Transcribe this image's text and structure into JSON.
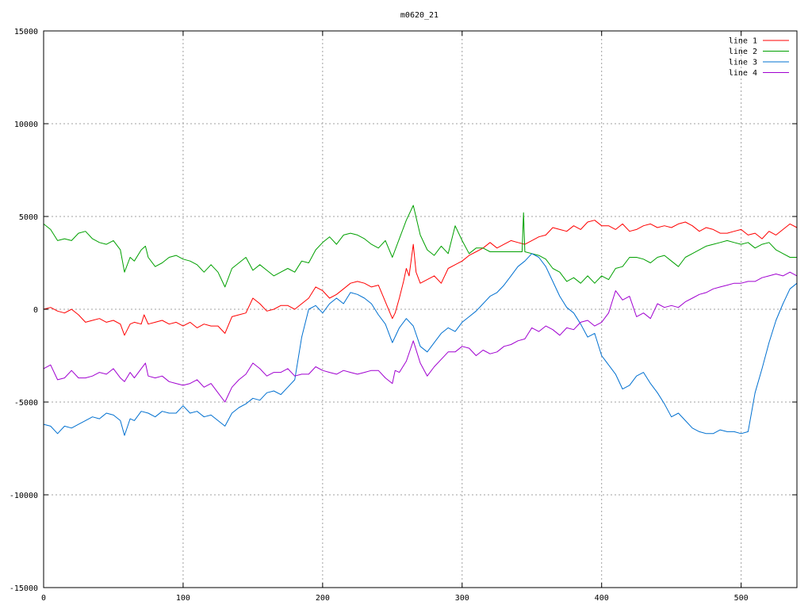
{
  "chart_data": {
    "type": "line",
    "title": "m0620_21",
    "xlabel": "",
    "ylabel": "",
    "xlim": [
      0,
      540
    ],
    "ylim": [
      -15000,
      15000
    ],
    "xticks": [
      "0",
      "100",
      "200",
      "300",
      "400",
      "500"
    ],
    "xtick_values": [
      0,
      100,
      200,
      300,
      400,
      500
    ],
    "yticks": [
      "15000",
      "10000",
      "5000",
      "0",
      "-5000",
      "-10000",
      "-15000"
    ],
    "ytick_values": [
      15000,
      10000,
      5000,
      0,
      -5000,
      -10000,
      -15000
    ],
    "grid": true,
    "legend_position": "top-right",
    "series": [
      {
        "name": "line 1",
        "color": "#ff0000",
        "x": [
          0,
          5,
          10,
          15,
          20,
          25,
          30,
          35,
          40,
          45,
          50,
          55,
          58,
          62,
          65,
          70,
          72,
          75,
          80,
          85,
          90,
          95,
          100,
          105,
          110,
          115,
          120,
          125,
          130,
          135,
          140,
          145,
          150,
          155,
          160,
          165,
          170,
          175,
          180,
          185,
          190,
          195,
          200,
          205,
          210,
          215,
          220,
          225,
          230,
          235,
          240,
          245,
          250,
          252,
          255,
          258,
          260,
          262,
          265,
          267,
          270,
          275,
          280,
          285,
          290,
          295,
          300,
          305,
          310,
          315,
          320,
          325,
          330,
          335,
          340,
          345,
          350,
          355,
          360,
          365,
          370,
          375,
          380,
          385,
          390,
          395,
          400,
          405,
          410,
          415,
          420,
          425,
          430,
          435,
          440,
          445,
          450,
          455,
          460,
          465,
          470,
          475,
          480,
          485,
          490,
          495,
          500,
          505,
          510,
          515,
          520,
          525,
          530,
          535,
          540
        ],
        "y": [
          0,
          100,
          -100,
          -200,
          0,
          -300,
          -700,
          -600,
          -500,
          -700,
          -600,
          -800,
          -1400,
          -800,
          -700,
          -800,
          -300,
          -800,
          -700,
          -600,
          -800,
          -700,
          -900,
          -700,
          -1000,
          -800,
          -900,
          -900,
          -1300,
          -400,
          -300,
          -200,
          600,
          300,
          -100,
          0,
          200,
          200,
          0,
          300,
          600,
          1200,
          1000,
          600,
          800,
          1100,
          1400,
          1500,
          1400,
          1200,
          1300,
          400,
          -500,
          -200,
          600,
          1500,
          2200,
          1800,
          3500,
          2000,
          1400,
          1600,
          1800,
          1400,
          2200,
          2400,
          2600,
          2900,
          3100,
          3300,
          3600,
          3300,
          3500,
          3700,
          3600,
          3500,
          3700,
          3900,
          4000,
          4400,
          4300,
          4200,
          4500,
          4300,
          4700,
          4800,
          4500,
          4500,
          4300,
          4600,
          4200,
          4300,
          4500,
          4600,
          4400,
          4500,
          4400,
          4600,
          4700,
          4500,
          4200,
          4400,
          4300,
          4100,
          4100,
          4200,
          4300,
          4000,
          4100,
          3800,
          4200,
          4000,
          4300,
          4600,
          4400
        ]
      },
      {
        "name": "line 2",
        "color": "#00a000",
        "x": [
          0,
          5,
          10,
          15,
          20,
          25,
          30,
          35,
          40,
          45,
          50,
          55,
          58,
          62,
          65,
          70,
          73,
          75,
          80,
          85,
          90,
          95,
          100,
          105,
          110,
          115,
          120,
          125,
          130,
          135,
          140,
          145,
          150,
          155,
          160,
          165,
          170,
          175,
          180,
          185,
          190,
          195,
          200,
          205,
          210,
          215,
          220,
          225,
          230,
          235,
          240,
          245,
          250,
          255,
          260,
          265,
          270,
          275,
          280,
          285,
          290,
          295,
          300,
          305,
          310,
          315,
          320,
          325,
          330,
          335,
          340,
          343,
          344,
          345,
          350,
          355,
          360,
          365,
          370,
          375,
          380,
          385,
          390,
          395,
          400,
          405,
          410,
          415,
          420,
          425,
          430,
          435,
          440,
          445,
          450,
          455,
          460,
          465,
          470,
          475,
          480,
          485,
          490,
          495,
          500,
          505,
          510,
          515,
          520,
          525,
          530,
          535,
          540
        ],
        "y": [
          4600,
          4300,
          3700,
          3800,
          3700,
          4100,
          4200,
          3800,
          3600,
          3500,
          3700,
          3200,
          2000,
          2800,
          2600,
          3200,
          3400,
          2800,
          2300,
          2500,
          2800,
          2900,
          2700,
          2600,
          2400,
          2000,
          2400,
          2000,
          1200,
          2200,
          2500,
          2800,
          2100,
          2400,
          2100,
          1800,
          2000,
          2200,
          2000,
          2600,
          2500,
          3200,
          3600,
          3900,
          3500,
          4000,
          4100,
          4000,
          3800,
          3500,
          3300,
          3700,
          2800,
          3800,
          4800,
          5600,
          4000,
          3200,
          2900,
          3400,
          3000,
          4500,
          3700,
          3000,
          3300,
          3300,
          3100,
          3100,
          3100,
          3100,
          3100,
          3100,
          5200,
          3100,
          3000,
          2900,
          2700,
          2200,
          2000,
          1500,
          1700,
          1400,
          1800,
          1400,
          1800,
          1600,
          2200,
          2300,
          2800,
          2800,
          2700,
          2500,
          2800,
          2900,
          2600,
          2300,
          2800,
          3000,
          3200,
          3400,
          3500,
          3600,
          3700,
          3600,
          3500,
          3600,
          3300,
          3500,
          3600,
          3200,
          3000,
          2800,
          2800
        ]
      },
      {
        "name": "line 3",
        "color": "#0070d0",
        "x": [
          0,
          5,
          10,
          15,
          20,
          25,
          30,
          35,
          40,
          45,
          50,
          55,
          58,
          62,
          65,
          70,
          75,
          80,
          85,
          90,
          95,
          100,
          105,
          110,
          115,
          120,
          125,
          130,
          135,
          140,
          145,
          150,
          155,
          160,
          165,
          170,
          175,
          180,
          185,
          190,
          195,
          200,
          205,
          210,
          215,
          220,
          225,
          230,
          235,
          240,
          245,
          250,
          255,
          260,
          265,
          270,
          275,
          280,
          285,
          290,
          295,
          300,
          305,
          310,
          315,
          320,
          325,
          330,
          335,
          340,
          345,
          350,
          355,
          360,
          365,
          370,
          375,
          380,
          385,
          390,
          395,
          400,
          405,
          410,
          415,
          420,
          425,
          430,
          435,
          440,
          445,
          450,
          455,
          460,
          465,
          470,
          475,
          480,
          485,
          490,
          495,
          500,
          505,
          510,
          515,
          520,
          525,
          530,
          535,
          540
        ],
        "y": [
          -6200,
          -6300,
          -6700,
          -6300,
          -6400,
          -6200,
          -6000,
          -5800,
          -5900,
          -5600,
          -5700,
          -6000,
          -6800,
          -5900,
          -6000,
          -5500,
          -5600,
          -5800,
          -5500,
          -5600,
          -5600,
          -5200,
          -5600,
          -5500,
          -5800,
          -5700,
          -6000,
          -6300,
          -5600,
          -5300,
          -5100,
          -4800,
          -4900,
          -4500,
          -4400,
          -4600,
          -4200,
          -3800,
          -1500,
          0,
          200,
          -200,
          300,
          600,
          300,
          900,
          800,
          600,
          300,
          -300,
          -800,
          -1800,
          -1000,
          -500,
          -900,
          -2000,
          -2300,
          -1800,
          -1300,
          -1000,
          -1200,
          -700,
          -400,
          -100,
          300,
          700,
          900,
          1300,
          1800,
          2300,
          2600,
          3000,
          2800,
          2300,
          1500,
          700,
          100,
          -200,
          -800,
          -1500,
          -1300,
          -2500,
          -3000,
          -3500,
          -4300,
          -4100,
          -3600,
          -3400,
          -4000,
          -4500,
          -5100,
          -5800,
          -5600,
          -6000,
          -6400,
          -6600,
          -6700,
          -6700,
          -6500,
          -6600,
          -6600,
          -6700,
          -6600,
          -4500,
          -3200,
          -1800,
          -600,
          300,
          1100,
          1400
        ]
      },
      {
        "name": "line 4",
        "color": "#a000d0",
        "x": [
          0,
          5,
          10,
          15,
          20,
          25,
          30,
          35,
          40,
          45,
          50,
          55,
          58,
          62,
          65,
          70,
          73,
          75,
          80,
          85,
          90,
          95,
          100,
          105,
          110,
          115,
          120,
          125,
          130,
          135,
          140,
          145,
          150,
          155,
          160,
          165,
          170,
          175,
          180,
          185,
          190,
          195,
          200,
          205,
          210,
          215,
          220,
          225,
          230,
          235,
          240,
          245,
          250,
          252,
          255,
          260,
          265,
          270,
          275,
          280,
          285,
          290,
          295,
          300,
          305,
          310,
          315,
          320,
          325,
          330,
          335,
          340,
          345,
          350,
          355,
          360,
          365,
          370,
          375,
          380,
          385,
          390,
          395,
          400,
          405,
          410,
          415,
          420,
          425,
          430,
          435,
          440,
          445,
          450,
          455,
          460,
          465,
          470,
          475,
          480,
          485,
          490,
          495,
          500,
          505,
          510,
          515,
          520,
          525,
          530,
          535,
          540
        ],
        "y": [
          -3200,
          -3000,
          -3800,
          -3700,
          -3300,
          -3700,
          -3700,
          -3600,
          -3400,
          -3500,
          -3200,
          -3700,
          -3900,
          -3400,
          -3700,
          -3200,
          -2900,
          -3600,
          -3700,
          -3600,
          -3900,
          -4000,
          -4100,
          -4000,
          -3800,
          -4200,
          -4000,
          -4500,
          -5000,
          -4200,
          -3800,
          -3500,
          -2900,
          -3200,
          -3600,
          -3400,
          -3400,
          -3200,
          -3600,
          -3500,
          -3500,
          -3100,
          -3300,
          -3400,
          -3500,
          -3300,
          -3400,
          -3500,
          -3400,
          -3300,
          -3300,
          -3700,
          -4000,
          -3300,
          -3400,
          -2800,
          -1700,
          -2900,
          -3600,
          -3100,
          -2700,
          -2300,
          -2300,
          -2000,
          -2100,
          -2500,
          -2200,
          -2400,
          -2300,
          -2000,
          -1900,
          -1700,
          -1600,
          -1000,
          -1200,
          -900,
          -1100,
          -1400,
          -1000,
          -1100,
          -700,
          -600,
          -900,
          -700,
          -200,
          1000,
          500,
          700,
          -400,
          -200,
          -500,
          300,
          100,
          200,
          100,
          400,
          600,
          800,
          900,
          1100,
          1200,
          1300,
          1400,
          1400,
          1500,
          1500,
          1700,
          1800,
          1900,
          1800,
          2000,
          1800
        ]
      }
    ]
  }
}
